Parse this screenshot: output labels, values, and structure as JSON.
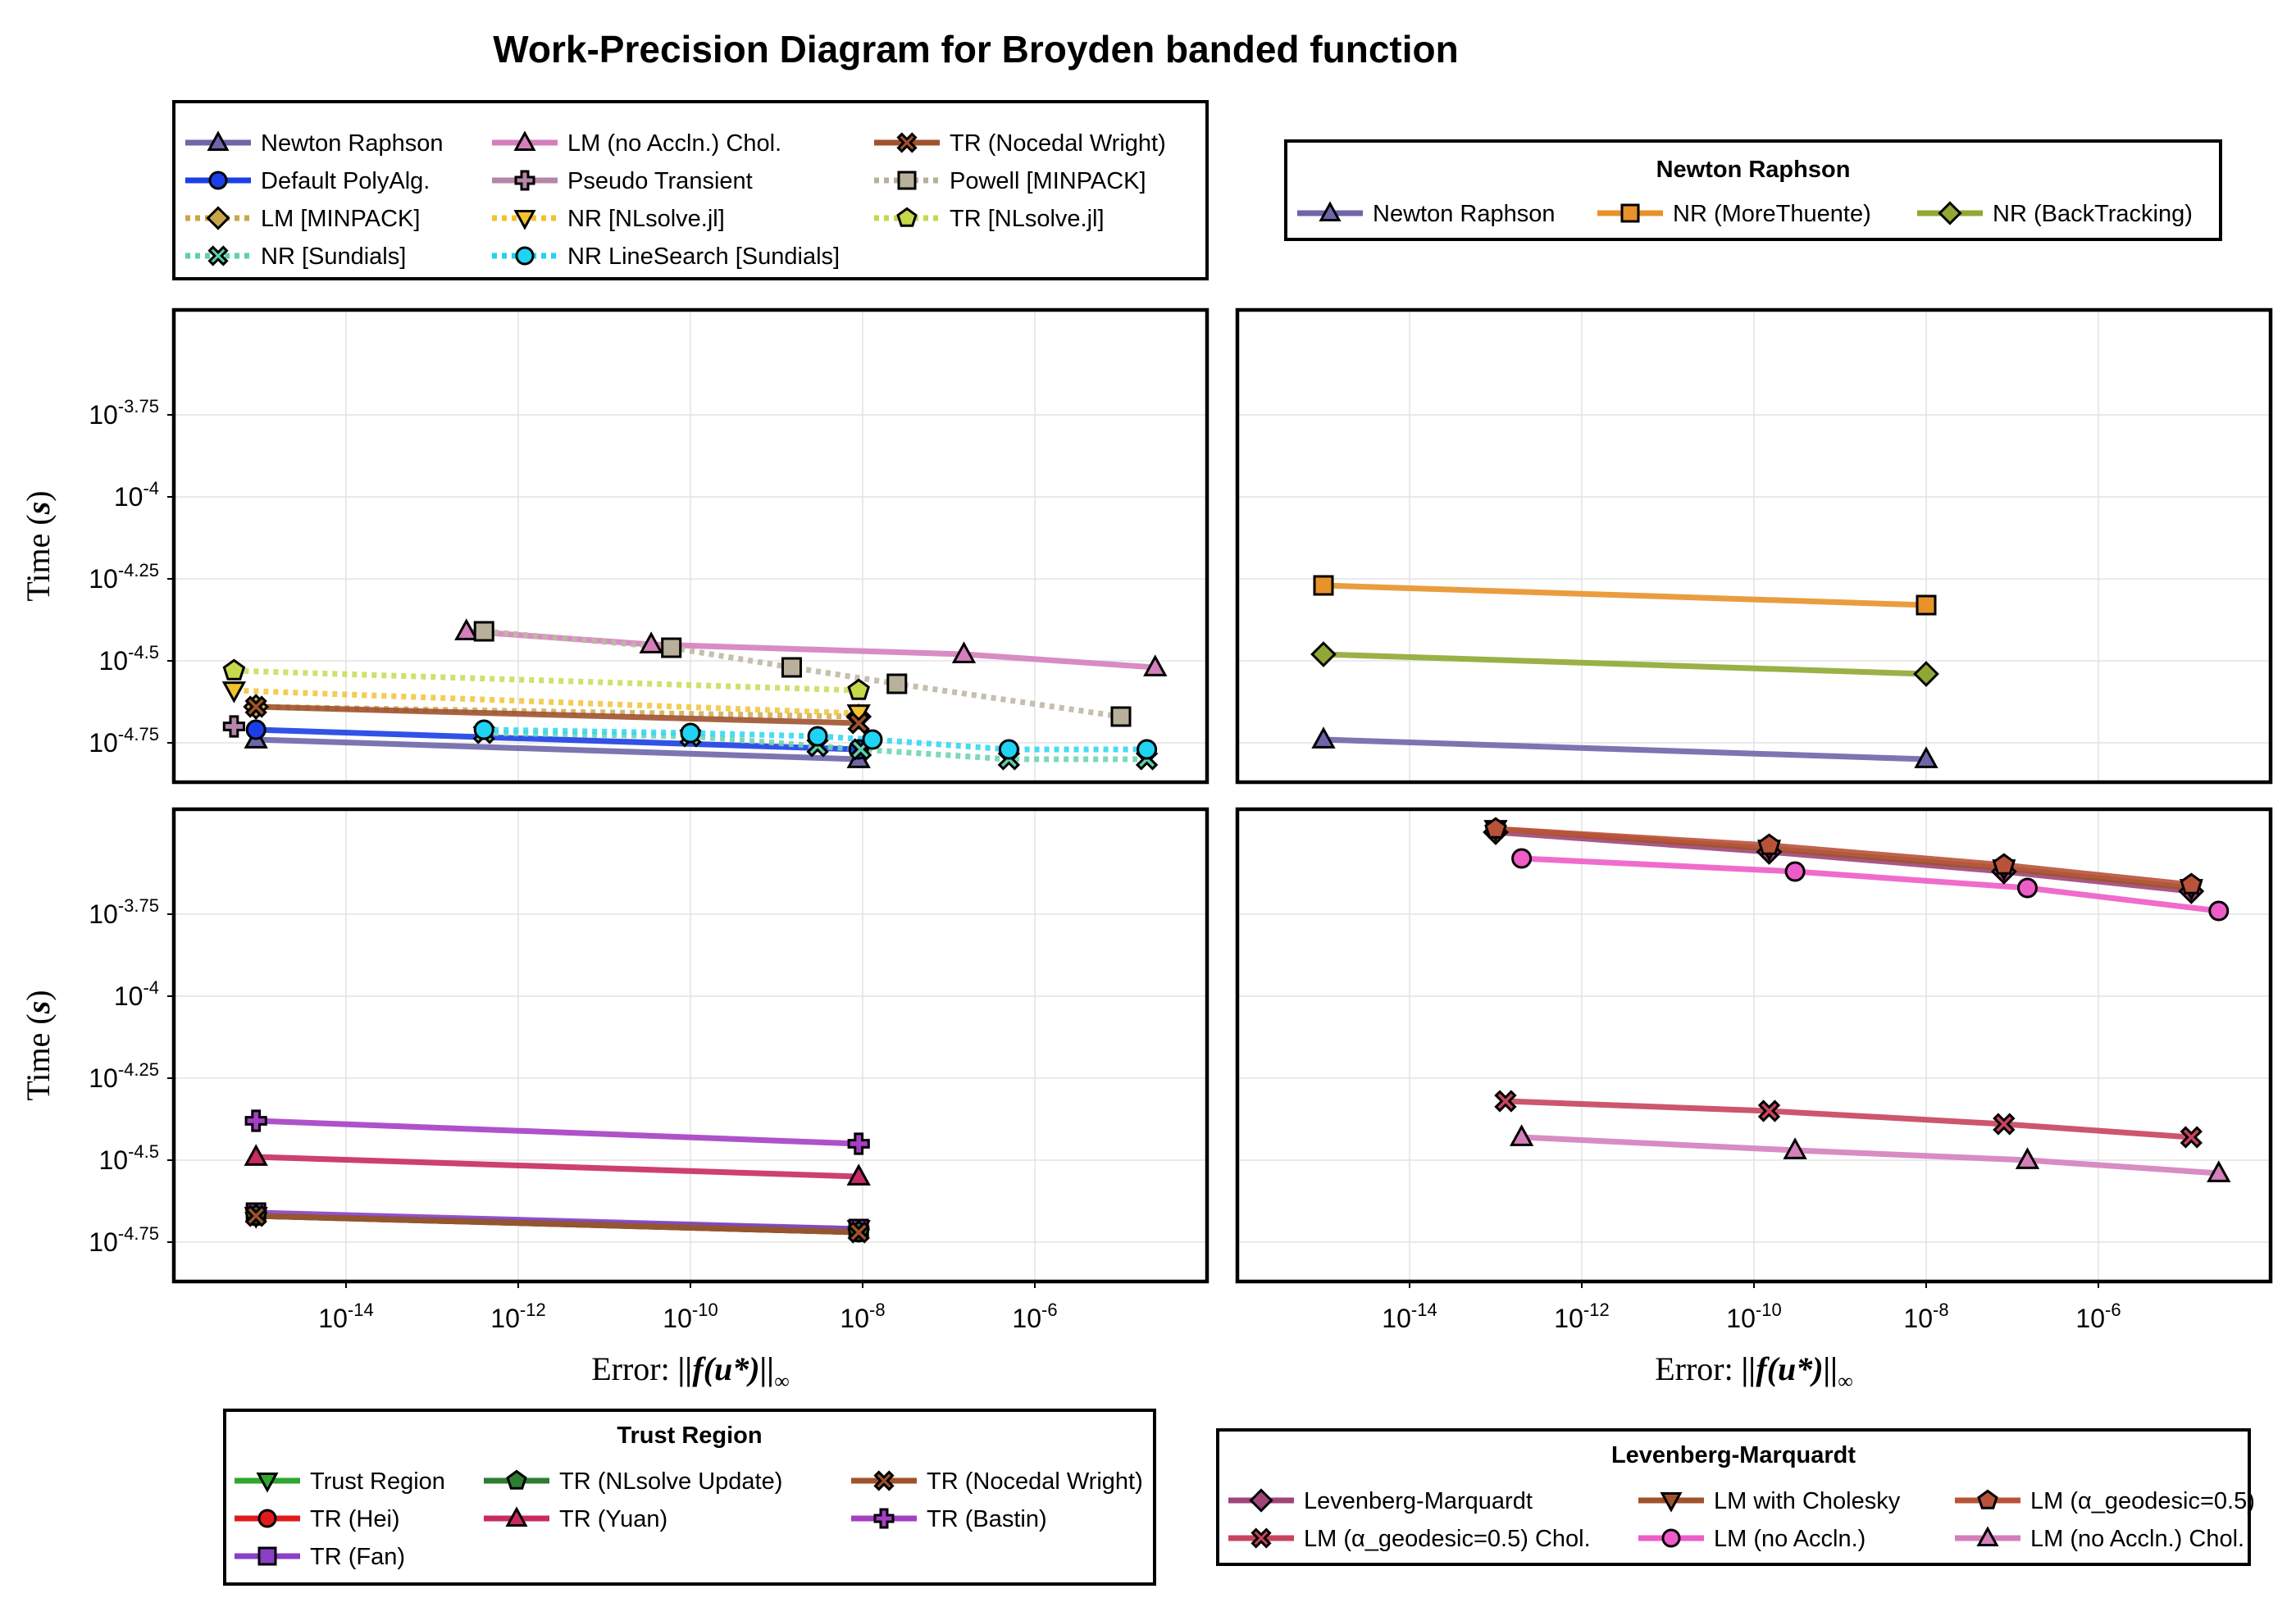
{
  "title": "Work-Precision Diagram for Broyden banded function",
  "chart_data": [
    {
      "type": "line",
      "panel": "top-left",
      "xlabel": "",
      "ylabel": "Time (s)",
      "xscale": "log",
      "yscale": "log",
      "xlim": [
        1e-16,
        0.0001
      ],
      "ylim": [
        -4.87,
        -3.43
      ],
      "y_is_log10": true,
      "xticks": [
        1e-14,
        1e-12,
        1e-10,
        1e-08,
        1e-06
      ],
      "yticks": [
        -4.75,
        -4.5,
        -4.25,
        -4,
        -3.75
      ],
      "grid": true,
      "series": [
        {
          "name": "Newton Raphson",
          "color": "#6d66a8",
          "style": "solid",
          "marker": "triangle",
          "x": [
            9e-16,
            9e-09
          ],
          "y": [
            -4.74,
            -4.8
          ]
        },
        {
          "name": "Default PolyAlg.",
          "color": "#1b3fe6",
          "style": "solid",
          "marker": "circle",
          "x": [
            9e-16,
            9e-09
          ],
          "y": [
            -4.71,
            -4.77
          ]
        },
        {
          "name": "LM [MINPACK]",
          "color": "#c9a64a",
          "style": "dotted",
          "marker": "diamond",
          "x": [
            9e-16,
            9e-09
          ],
          "y": [
            -4.64,
            -4.67
          ]
        },
        {
          "name": "NR [Sundials]",
          "color": "#5fcfa8",
          "style": "dotted",
          "marker": "x",
          "x": [
            4e-13,
            1e-10,
            3e-09,
            9.5e-09,
            5e-07,
            2e-05
          ],
          "y": [
            -4.72,
            -4.73,
            -4.76,
            -4.77,
            -4.8,
            -4.8
          ]
        },
        {
          "name": "LM (no Accln.) Chol.",
          "color": "#d47fbc",
          "style": "solid",
          "marker": "triangle",
          "x": [
            2.5e-13,
            3.5e-11,
            1.5e-07,
            2.5e-05
          ],
          "y": [
            -4.41,
            -4.45,
            -4.48,
            -4.52
          ]
        },
        {
          "name": "Pseudo Transient",
          "color": "#b586a8",
          "style": "solid",
          "marker": "plus",
          "x": [
            5e-16
          ],
          "y": [
            -4.7
          ]
        },
        {
          "name": "NR [NLsolve.jl]",
          "color": "#f2c12e",
          "style": "dotted",
          "marker": "triangle-down",
          "x": [
            5e-16,
            9e-09
          ],
          "y": [
            -4.59,
            -4.66
          ]
        },
        {
          "name": "NR LineSearch [Sundials]",
          "color": "#1fd3f2",
          "style": "dotted",
          "marker": "circle",
          "x": [
            4e-13,
            1e-10,
            3e-09,
            1.3e-08,
            5e-07,
            2e-05
          ],
          "y": [
            -4.71,
            -4.72,
            -4.73,
            -4.74,
            -4.77,
            -4.77
          ]
        },
        {
          "name": "TR (Nocedal Wright)",
          "color": "#a0522d",
          "style": "solid",
          "marker": "x",
          "x": [
            9e-16,
            9e-09
          ],
          "y": [
            -4.64,
            -4.69
          ]
        },
        {
          "name": "Powell [MINPACK]",
          "color": "#b8b09a",
          "style": "dotted",
          "marker": "square",
          "x": [
            4e-13,
            6e-11,
            1.5e-09,
            2.5e-08,
            1e-05
          ],
          "y": [
            -4.41,
            -4.46,
            -4.52,
            -4.57,
            -4.67
          ]
        },
        {
          "name": "TR [NLsolve.jl]",
          "color": "#c6d94a",
          "style": "dotted",
          "marker": "pentagon",
          "x": [
            5e-16,
            9e-09
          ],
          "y": [
            -4.53,
            -4.59
          ]
        }
      ]
    },
    {
      "type": "line",
      "panel": "top-right",
      "xlabel": "",
      "ylabel": "",
      "xscale": "log",
      "yscale": "log",
      "xlim": [
        1e-16,
        0.0001
      ],
      "ylim": [
        -4.87,
        -3.43
      ],
      "y_is_log10": true,
      "grid": true,
      "series": [
        {
          "name": "Newton Raphson",
          "color": "#6d66a8",
          "style": "solid",
          "marker": "triangle",
          "x": [
            1e-15,
            1e-08
          ],
          "y": [
            -4.74,
            -4.8
          ]
        },
        {
          "name": "NR (MoreThuente)",
          "color": "#e8922a",
          "style": "solid",
          "marker": "square",
          "x": [
            1e-15,
            1e-08
          ],
          "y": [
            -4.27,
            -4.33
          ]
        },
        {
          "name": "NR (BackTracking)",
          "color": "#8fa833",
          "style": "solid",
          "marker": "diamond",
          "x": [
            1e-15,
            1e-08
          ],
          "y": [
            -4.48,
            -4.54
          ]
        }
      ]
    },
    {
      "type": "line",
      "panel": "bottom-left",
      "xlabel": "Error: ||f(u*)||∞",
      "ylabel": "Time (s)",
      "xscale": "log",
      "yscale": "log",
      "xlim": [
        1e-16,
        0.0001
      ],
      "ylim": [
        -4.87,
        -3.43
      ],
      "y_is_log10": true,
      "grid": true,
      "series": [
        {
          "name": "Trust Region",
          "color": "#2fa82f",
          "style": "solid",
          "marker": "triangle-down",
          "x": [
            9e-16,
            9e-09
          ],
          "y": [
            -4.67,
            -4.71
          ]
        },
        {
          "name": "TR (Hei)",
          "color": "#e01a1a",
          "style": "solid",
          "marker": "circle",
          "x": [
            9e-16,
            9e-09
          ],
          "y": [
            -4.67,
            -4.72
          ]
        },
        {
          "name": "TR (Fan)",
          "color": "#8a3fc4",
          "style": "solid",
          "marker": "square",
          "x": [
            9e-16,
            9e-09
          ],
          "y": [
            -4.66,
            -4.71
          ]
        },
        {
          "name": "TR (NLsolve Update)",
          "color": "#2e7d32",
          "style": "solid",
          "marker": "pentagon",
          "x": [
            9e-16,
            9e-09
          ],
          "y": [
            -4.67,
            -4.72
          ]
        },
        {
          "name": "TR (Yuan)",
          "color": "#c92a63",
          "style": "solid",
          "marker": "triangle",
          "x": [
            9e-16,
            9e-09
          ],
          "y": [
            -4.49,
            -4.55
          ]
        },
        {
          "name": "TR (Nocedal Wright)",
          "color": "#a0522d",
          "style": "solid",
          "marker": "x",
          "x": [
            9e-16,
            9e-09
          ],
          "y": [
            -4.67,
            -4.72
          ]
        },
        {
          "name": "TR (Bastin)",
          "color": "#a53fc4",
          "style": "solid",
          "marker": "plus",
          "x": [
            9e-16,
            9e-09
          ],
          "y": [
            -4.38,
            -4.45
          ]
        }
      ]
    },
    {
      "type": "line",
      "panel": "bottom-right",
      "xlabel": "Error: ||f(u*)||∞",
      "ylabel": "",
      "xscale": "log",
      "yscale": "log",
      "xlim": [
        1e-16,
        0.0001
      ],
      "ylim": [
        -4.87,
        -3.43
      ],
      "y_is_log10": true,
      "grid": true,
      "series": [
        {
          "name": "Levenberg-Marquardt",
          "color": "#a0457a",
          "style": "solid",
          "marker": "diamond",
          "x": [
            1e-13,
            1.5e-10,
            8e-08,
            1.2e-05
          ],
          "y": [
            -3.5,
            -3.56,
            -3.62,
            -3.68
          ]
        },
        {
          "name": "LM with Cholesky",
          "color": "#a0522d",
          "style": "solid",
          "marker": "triangle-down",
          "x": [
            1e-13,
            1.5e-10,
            8e-08,
            1.2e-05
          ],
          "y": [
            -3.49,
            -3.55,
            -3.61,
            -3.67
          ]
        },
        {
          "name": "LM (α_geodesic=0.5)",
          "color": "#b8533a",
          "style": "solid",
          "marker": "pentagon",
          "x": [
            1e-13,
            1.5e-10,
            8e-08,
            1.2e-05
          ],
          "y": [
            -3.49,
            -3.54,
            -3.6,
            -3.66
          ]
        },
        {
          "name": "LM (α_geodesic=0.5) Chol.",
          "color": "#c7445e",
          "style": "solid",
          "marker": "x",
          "x": [
            1.3e-13,
            1.5e-10,
            8e-08,
            1.2e-05
          ],
          "y": [
            -4.32,
            -4.35,
            -4.39,
            -4.43
          ]
        },
        {
          "name": "LM (no Accln.)",
          "color": "#ee5cc7",
          "style": "solid",
          "marker": "circle",
          "x": [
            2e-13,
            3e-10,
            1.5e-07,
            2.5e-05
          ],
          "y": [
            -3.58,
            -3.62,
            -3.67,
            -3.74
          ]
        },
        {
          "name": "LM (no Accln.) Chol.",
          "color": "#d47fbc",
          "style": "solid",
          "marker": "triangle",
          "x": [
            2e-13,
            3e-10,
            1.5e-07,
            2.5e-05
          ],
          "y": [
            -4.43,
            -4.47,
            -4.5,
            -4.54
          ]
        }
      ]
    }
  ],
  "legends": {
    "main": {
      "title": "",
      "entries": [
        {
          "label": "Newton Raphson",
          "color": "#6d66a8",
          "style": "solid",
          "marker": "triangle"
        },
        {
          "label": "Default PolyAlg.",
          "color": "#1b3fe6",
          "style": "solid",
          "marker": "circle"
        },
        {
          "label": "LM [MINPACK]",
          "color": "#c9a64a",
          "style": "dotted",
          "marker": "diamond"
        },
        {
          "label": "NR [Sundials]",
          "color": "#5fcfa8",
          "style": "dotted",
          "marker": "x"
        },
        {
          "label": "LM (no Accln.) Chol.",
          "color": "#d47fbc",
          "style": "solid",
          "marker": "triangle"
        },
        {
          "label": "Pseudo Transient",
          "color": "#b586a8",
          "style": "solid",
          "marker": "plus"
        },
        {
          "label": "NR [NLsolve.jl]",
          "color": "#f2c12e",
          "style": "dotted",
          "marker": "triangle-down"
        },
        {
          "label": "NR LineSearch [Sundials]",
          "color": "#1fd3f2",
          "style": "dotted",
          "marker": "circle"
        },
        {
          "label": "TR (Nocedal Wright)",
          "color": "#a0522d",
          "style": "solid",
          "marker": "x"
        },
        {
          "label": "Powell [MINPACK]",
          "color": "#b8b09a",
          "style": "dotted",
          "marker": "square"
        },
        {
          "label": "TR [NLsolve.jl]",
          "color": "#c6d94a",
          "style": "dotted",
          "marker": "pentagon"
        }
      ]
    },
    "newton": {
      "title": "Newton Raphson",
      "entries": [
        {
          "label": "Newton Raphson",
          "color": "#6d66a8",
          "style": "solid",
          "marker": "triangle"
        },
        {
          "label": "NR (MoreThuente)",
          "color": "#e8922a",
          "style": "solid",
          "marker": "square"
        },
        {
          "label": "NR (BackTracking)",
          "color": "#8fa833",
          "style": "solid",
          "marker": "diamond"
        }
      ]
    },
    "trust_region": {
      "title": "Trust Region",
      "entries": [
        {
          "label": "Trust Region",
          "color": "#2fa82f",
          "style": "solid",
          "marker": "triangle-down"
        },
        {
          "label": "TR (Hei)",
          "color": "#e01a1a",
          "style": "solid",
          "marker": "circle"
        },
        {
          "label": "TR (Fan)",
          "color": "#8a3fc4",
          "style": "solid",
          "marker": "square"
        },
        {
          "label": "TR (NLsolve Update)",
          "color": "#2e7d32",
          "style": "solid",
          "marker": "pentagon"
        },
        {
          "label": "TR (Yuan)",
          "color": "#c92a63",
          "style": "solid",
          "marker": "triangle"
        },
        {
          "label": "TR (Nocedal Wright)",
          "color": "#a0522d",
          "style": "solid",
          "marker": "x"
        },
        {
          "label": "TR (Bastin)",
          "color": "#a53fc4",
          "style": "solid",
          "marker": "plus"
        }
      ]
    },
    "levenberg": {
      "title": "Levenberg-Marquardt",
      "entries": [
        {
          "label": "Levenberg-Marquardt",
          "color": "#a0457a",
          "style": "solid",
          "marker": "diamond"
        },
        {
          "label": "LM (α_geodesic=0.5) Chol.",
          "color": "#c7445e",
          "style": "solid",
          "marker": "x"
        },
        {
          "label": "LM with Cholesky",
          "color": "#a0522d",
          "style": "solid",
          "marker": "triangle-down"
        },
        {
          "label": "LM (no Accln.)",
          "color": "#ee5cc7",
          "style": "solid",
          "marker": "circle"
        },
        {
          "label": "LM (α_geodesic=0.5)",
          "color": "#b8533a",
          "style": "solid",
          "marker": "pentagon"
        },
        {
          "label": "LM (no Accln.) Chol.",
          "color": "#d47fbc",
          "style": "solid",
          "marker": "triangle"
        }
      ]
    }
  },
  "axis_text": {
    "ylabel_prefix": "Time ",
    "ylabel_var": "s",
    "xlabel_prefix": "Error: ",
    "xlabel_var": "||f(u*)||",
    "xlabel_sub": "∞",
    "ytick_labels": [
      "10",
      "10",
      "10",
      "10",
      "10"
    ],
    "ytick_exps": [
      "-4.75",
      "-4.5",
      "-4.25",
      "-4",
      "-3.75"
    ],
    "xtick_labels": [
      "10",
      "10",
      "10",
      "10",
      "10"
    ],
    "xtick_exps": [
      "-14",
      "-12",
      "-10",
      "-8",
      "-6"
    ]
  }
}
